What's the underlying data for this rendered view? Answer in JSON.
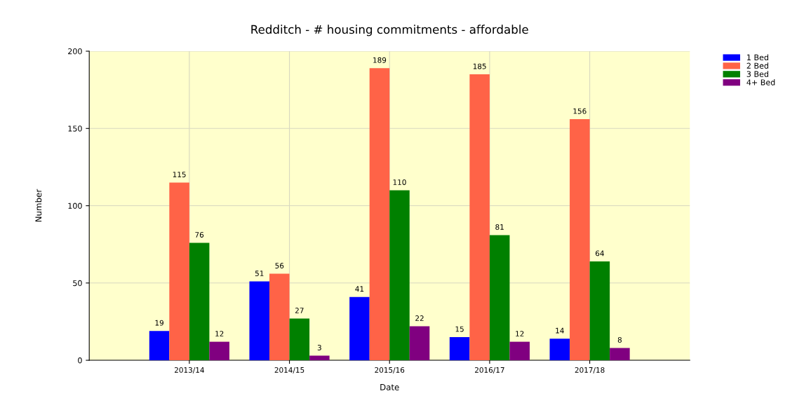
{
  "chart_data": {
    "type": "bar",
    "title": "Redditch - # housing commitments - affordable",
    "xlabel": "Date",
    "ylabel": "Number",
    "categories": [
      "2013/14",
      "2014/15",
      "2015/16",
      "2016/17",
      "2017/18"
    ],
    "series": [
      {
        "name": "1 Bed",
        "color": "#0000ff",
        "values": [
          19,
          51,
          41,
          15,
          14
        ]
      },
      {
        "name": "2 Bed",
        "color": "#ff6347",
        "values": [
          115,
          56,
          189,
          185,
          156
        ]
      },
      {
        "name": "3 Bed",
        "color": "#008000",
        "values": [
          76,
          27,
          110,
          81,
          64
        ]
      },
      {
        "name": "4+ Bed",
        "color": "#800080",
        "values": [
          12,
          3,
          22,
          12,
          8
        ]
      }
    ],
    "ylim": [
      0,
      200
    ],
    "yticks": [
      0,
      50,
      100,
      150,
      200
    ],
    "grid": true,
    "legend": "top right",
    "data_labels": true
  }
}
